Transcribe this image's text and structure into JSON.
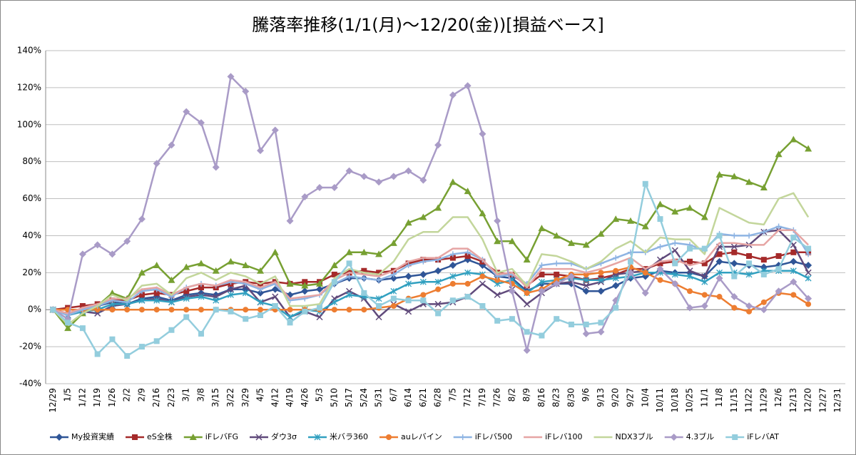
{
  "chart_data": {
    "type": "line",
    "title": "騰落率推移(1/1(月)～12/20(金))[損益ベース]",
    "categories": [
      "12/29",
      "1/5",
      "1/12",
      "1/19",
      "1/26",
      "2/2",
      "2/9",
      "2/16",
      "2/23",
      "3/1",
      "3/8",
      "3/15",
      "3/22",
      "3/29",
      "4/5",
      "4/12",
      "4/19",
      "4/26",
      "5/3",
      "5/10",
      "5/17",
      "5/24",
      "5/31",
      "6/7",
      "6/14",
      "6/21",
      "6/28",
      "7/5",
      "7/12",
      "7/19",
      "7/26",
      "8/2",
      "8/9",
      "8/16",
      "8/23",
      "8/30",
      "9/6",
      "9/13",
      "9/20",
      "9/27",
      "10/4",
      "10/11",
      "10/18",
      "10/25",
      "11/1",
      "11/8",
      "11/15",
      "11/22",
      "11/29",
      "12/6",
      "12/13",
      "12/20",
      "12/27",
      "12/31"
    ],
    "ylim": [
      -40,
      140
    ],
    "yticks": [
      {
        "value": -40,
        "label": "-40%"
      },
      {
        "value": -20,
        "label": "-20%"
      },
      {
        "value": 0,
        "label": "0%"
      },
      {
        "value": 20,
        "label": "20%"
      },
      {
        "value": 40,
        "label": "40%"
      },
      {
        "value": 60,
        "label": "60%"
      },
      {
        "value": 80,
        "label": "80%"
      },
      {
        "value": 100,
        "label": "100%"
      },
      {
        "value": 120,
        "label": "120%"
      },
      {
        "value": 140,
        "label": "140%"
      }
    ],
    "grid": true,
    "legend": "bottom",
    "series": [
      {
        "name": "My投資実績",
        "color": "#2f5597",
        "marker": "diamond",
        "values": [
          0,
          -2,
          0,
          2,
          4,
          3,
          6,
          7,
          5,
          8,
          9,
          8,
          11,
          11,
          9,
          11,
          8,
          10,
          11,
          14,
          17,
          17,
          16,
          17,
          18,
          19,
          21,
          24,
          27,
          24,
          18,
          17,
          10,
          14,
          14,
          14,
          10,
          10,
          13,
          17,
          18,
          21,
          20,
          20,
          18,
          26,
          25,
          24,
          23,
          24,
          26,
          24,
          null,
          null
        ]
      },
      {
        "name": "eS全株",
        "color": "#a52a2a",
        "marker": "square",
        "values": [
          0,
          1,
          2,
          3,
          5,
          5,
          8,
          9,
          8,
          10,
          12,
          12,
          14,
          15,
          14,
          15,
          14,
          15,
          15,
          19,
          20,
          21,
          20,
          21,
          25,
          27,
          27,
          28,
          29,
          26,
          20,
          19,
          13,
          19,
          19,
          18,
          16,
          17,
          19,
          22,
          22,
          25,
          26,
          26,
          25,
          30,
          31,
          29,
          27,
          29,
          31,
          31,
          null,
          null
        ]
      },
      {
        "name": "iFレバFG",
        "color": "#77a032",
        "marker": "triangle",
        "values": [
          0,
          -10,
          -2,
          2,
          9,
          6,
          20,
          24,
          16,
          23,
          25,
          21,
          26,
          24,
          21,
          31,
          14,
          13,
          14,
          24,
          31,
          31,
          30,
          36,
          47,
          50,
          55,
          69,
          64,
          52,
          37,
          37,
          27,
          44,
          40,
          36,
          35,
          41,
          49,
          48,
          45,
          57,
          53,
          55,
          50,
          73,
          72,
          69,
          66,
          84,
          92,
          87,
          null,
          null
        ]
      },
      {
        "name": "ダウ3σ",
        "color": "#604a7b",
        "marker": "x",
        "values": [
          0,
          -3,
          -1,
          -2,
          2,
          3,
          5,
          6,
          4,
          7,
          8,
          7,
          11,
          13,
          4,
          7,
          -4,
          -1,
          -4,
          6,
          10,
          6,
          -4,
          3,
          -1,
          3,
          3,
          4,
          7,
          14,
          8,
          11,
          3,
          9,
          14,
          15,
          13,
          15,
          19,
          20,
          21,
          27,
          32,
          21,
          18,
          34,
          34,
          35,
          42,
          43,
          35,
          20,
          null,
          null
        ]
      },
      {
        "name": "米バラ360",
        "color": "#31a0c0",
        "marker": "star",
        "values": [
          0,
          -3,
          -1,
          0,
          3,
          3,
          5,
          5,
          4,
          6,
          7,
          5,
          8,
          9,
          4,
          2,
          -4,
          0,
          -1,
          4,
          8,
          7,
          6,
          10,
          14,
          15,
          15,
          18,
          20,
          19,
          14,
          16,
          9,
          15,
          16,
          17,
          16,
          16,
          17,
          18,
          20,
          20,
          19,
          18,
          15,
          20,
          20,
          19,
          21,
          21,
          21,
          17,
          null,
          null
        ]
      },
      {
        "name": "auレバイン",
        "color": "#ed7d31",
        "marker": "circle",
        "values": [
          0,
          0,
          0,
          0,
          0,
          0,
          0,
          0,
          0,
          0,
          0,
          0,
          0,
          0,
          0,
          0,
          0,
          0,
          0,
          0,
          0,
          0,
          1,
          2,
          6,
          8,
          11,
          14,
          14,
          18,
          16,
          14,
          9,
          11,
          16,
          19,
          19,
          20,
          21,
          23,
          20,
          16,
          14,
          10,
          8,
          7,
          1,
          -1,
          4,
          9,
          8,
          3,
          null,
          null
        ]
      },
      {
        "name": "iFレバ500",
        "color": "#8eb4e3",
        "marker": "plus",
        "values": [
          0,
          -3,
          0,
          2,
          5,
          4,
          10,
          11,
          7,
          12,
          14,
          13,
          15,
          14,
          11,
          14,
          5,
          6,
          8,
          14,
          18,
          17,
          16,
          19,
          24,
          26,
          27,
          30,
          31,
          27,
          18,
          19,
          14,
          24,
          25,
          25,
          22,
          25,
          28,
          31,
          31,
          34,
          36,
          35,
          32,
          41,
          40,
          40,
          42,
          45,
          43,
          30,
          null,
          null
        ]
      },
      {
        "name": "iFレバ100",
        "color": "#e6a5a4",
        "marker": "none",
        "values": [
          0,
          -2,
          1,
          3,
          6,
          6,
          11,
          12,
          8,
          12,
          14,
          13,
          16,
          15,
          12,
          15,
          6,
          7,
          8,
          16,
          20,
          19,
          18,
          21,
          26,
          28,
          28,
          33,
          33,
          27,
          19,
          20,
          12,
          22,
          22,
          22,
          20,
          22,
          25,
          28,
          22,
          26,
          27,
          24,
          26,
          36,
          36,
          35,
          35,
          43,
          43,
          35,
          null,
          null
        ]
      },
      {
        "name": "NDX3ブル",
        "color": "#c3d69b",
        "marker": "none",
        "values": [
          0,
          -8,
          -2,
          2,
          8,
          5,
          13,
          14,
          8,
          17,
          20,
          16,
          20,
          18,
          14,
          18,
          2,
          2,
          3,
          17,
          22,
          20,
          19,
          26,
          38,
          42,
          42,
          50,
          50,
          38,
          20,
          22,
          13,
          30,
          29,
          26,
          22,
          26,
          33,
          37,
          31,
          39,
          38,
          38,
          30,
          55,
          51,
          47,
          46,
          60,
          63,
          50,
          null,
          null
        ]
      },
      {
        "name": "4.3ブル",
        "color": "#a99bc7",
        "marker": "diamond",
        "values": [
          0,
          -5,
          30,
          35,
          30,
          37,
          49,
          79,
          89,
          107,
          101,
          77,
          126,
          118,
          86,
          97,
          48,
          61,
          66,
          66,
          75,
          72,
          69,
          72,
          75,
          70,
          89,
          116,
          121,
          95,
          48,
          10,
          -22,
          10,
          14,
          18,
          -13,
          -12,
          5,
          20,
          9,
          22,
          14,
          1,
          2,
          17,
          7,
          2,
          0,
          10,
          15,
          6,
          null,
          null
        ]
      },
      {
        "name": "iFレバAT",
        "color": "#93cddd",
        "marker": "square",
        "values": [
          0,
          -7,
          -10,
          -24,
          -16,
          -25,
          -20,
          -17,
          -11,
          -4,
          -13,
          0,
          -1,
          -5,
          -3,
          2,
          -7,
          -1,
          1,
          15,
          25,
          9,
          2,
          6,
          5,
          5,
          -2,
          5,
          7,
          2,
          -6,
          -5,
          -12,
          -14,
          -5,
          -8,
          -8,
          -7,
          1,
          26,
          68,
          49,
          25,
          33,
          33,
          40,
          18,
          25,
          19,
          22,
          39,
          33,
          null,
          null
        ]
      }
    ]
  }
}
